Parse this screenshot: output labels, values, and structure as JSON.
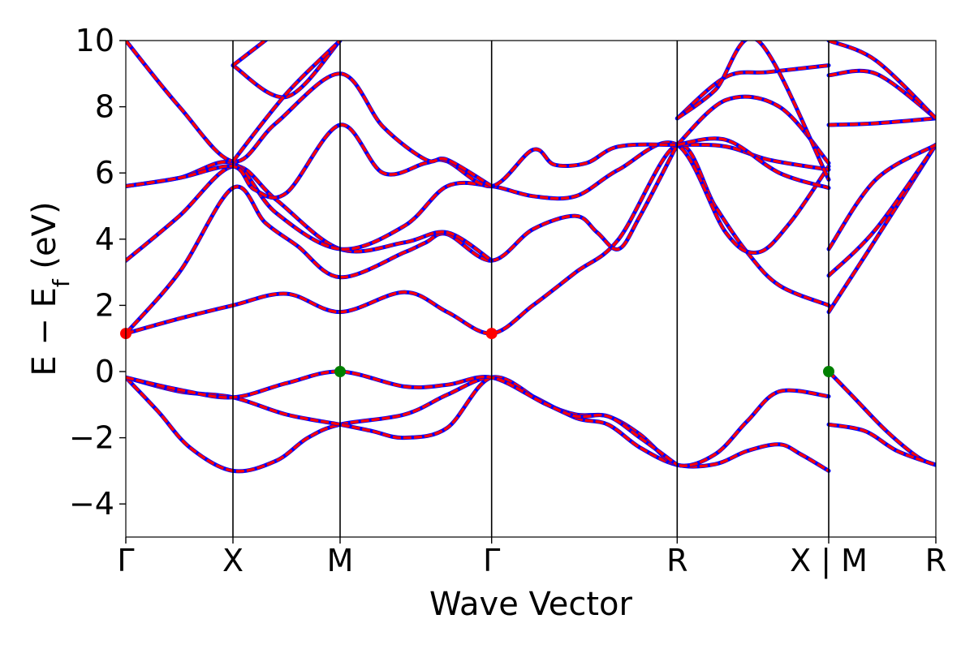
{
  "chart_data": {
    "type": "line",
    "xlabel": "Wave Vector",
    "ylabel": {
      "text_prefix": "E − E",
      "subscript": "f",
      "text_suffix": " (eV)"
    },
    "ylim": [
      -5,
      10
    ],
    "yticks": [
      -4,
      -2,
      0,
      2,
      4,
      6,
      8,
      10
    ],
    "ytick_labels": [
      "−4",
      "−2",
      "0",
      "2",
      "4",
      "6",
      "8",
      "10"
    ],
    "xticks": [
      {
        "x": 0.0,
        "label": "Γ"
      },
      {
        "x": 0.5,
        "label": "X"
      },
      {
        "x": 1.0,
        "label": "M"
      },
      {
        "x": 1.7071,
        "label": "Γ"
      },
      {
        "x": 2.5731,
        "label": "R"
      },
      {
        "x": 3.2802,
        "label": "X | M"
      },
      {
        "x": 3.7802,
        "label": "R"
      }
    ],
    "xlim": [
      0,
      3.7802
    ],
    "grid": false,
    "legend": "none",
    "series_colors": {
      "dft": "#0000ff",
      "wannier": "#ff0000"
    },
    "bands": [
      [
        [
          0,
          -0.18
        ],
        [
          0.15,
          -1.2
        ],
        [
          0.3,
          -2.3
        ],
        [
          0.5,
          -3.0
        ],
        [
          0.7,
          -2.7
        ],
        [
          0.85,
          -2.0
        ],
        [
          1.0,
          -1.6
        ],
        [
          1.3,
          -1.3
        ],
        [
          1.5,
          -0.7
        ],
        [
          1.7071,
          -0.18
        ],
        [
          1.9,
          -0.75
        ],
        [
          2.1,
          -1.4
        ],
        [
          2.25,
          -1.6
        ],
        [
          2.4,
          -2.3
        ],
        [
          2.5731,
          -2.82
        ],
        [
          2.75,
          -2.8
        ],
        [
          2.9,
          -2.4
        ],
        [
          3.05,
          -2.2
        ],
        [
          3.15,
          -2.5
        ],
        [
          3.2802,
          -3.0
        ]
      ],
      [
        [
          0,
          -0.18
        ],
        [
          0.25,
          -0.6
        ],
        [
          0.5,
          -0.78
        ],
        [
          0.75,
          -1.3
        ],
        [
          1.0,
          -1.6
        ],
        [
          1.15,
          -1.8
        ],
        [
          1.3,
          -2.0
        ],
        [
          1.5,
          -1.7
        ],
        [
          1.7071,
          -0.18
        ],
        [
          1.95,
          -0.95
        ],
        [
          2.1,
          -1.3
        ],
        [
          2.25,
          -1.35
        ],
        [
          2.4,
          -1.9
        ],
        [
          2.5731,
          -2.82
        ],
        [
          2.75,
          -2.5
        ],
        [
          2.9,
          -1.5
        ],
        [
          3.05,
          -0.6
        ],
        [
          3.2802,
          -0.75
        ]
      ],
      [
        [
          0,
          -0.18
        ],
        [
          0.25,
          -0.55
        ],
        [
          0.5,
          -0.78
        ],
        [
          0.75,
          -0.35
        ],
        [
          1.0,
          0.0
        ],
        [
          1.3,
          -0.45
        ],
        [
          1.5,
          -0.4
        ],
        [
          1.7071,
          -0.18
        ],
        [
          1.95,
          -0.95
        ],
        [
          2.1,
          -1.35
        ],
        [
          2.25,
          -1.35
        ],
        [
          2.4,
          -2.0
        ],
        [
          2.5731,
          -2.82
        ]
      ],
      [
        [
          3.2802,
          0.0
        ],
        [
          3.4,
          -0.8
        ],
        [
          3.55,
          -1.8
        ],
        [
          3.7,
          -2.6
        ],
        [
          3.7802,
          -2.82
        ]
      ],
      [
        [
          3.2802,
          -1.6
        ],
        [
          3.45,
          -1.8
        ],
        [
          3.6,
          -2.4
        ],
        [
          3.7802,
          -2.82
        ]
      ],
      [
        [
          0,
          1.15
        ],
        [
          0.25,
          1.6
        ],
        [
          0.5,
          2.0
        ],
        [
          0.75,
          2.35
        ],
        [
          1.0,
          1.8
        ],
        [
          1.3,
          2.4
        ],
        [
          1.5,
          1.8
        ],
        [
          1.7071,
          1.15
        ],
        [
          1.9,
          2.0
        ],
        [
          2.1,
          3.0
        ],
        [
          2.3,
          4.0
        ],
        [
          2.5731,
          6.85
        ],
        [
          2.75,
          5.0
        ],
        [
          2.9,
          3.6
        ],
        [
          3.05,
          2.6
        ],
        [
          3.2802,
          2.0
        ]
      ],
      [
        [
          0,
          1.15
        ],
        [
          0.25,
          3.0
        ],
        [
          0.5,
          5.55
        ],
        [
          0.65,
          4.5
        ],
        [
          0.8,
          3.8
        ],
        [
          1.0,
          2.85
        ],
        [
          1.3,
          3.6
        ],
        [
          1.4,
          3.9
        ],
        [
          1.5,
          4.15
        ],
        [
          1.7071,
          3.35
        ],
        [
          1.9,
          4.3
        ],
        [
          2.1,
          4.7
        ],
        [
          2.2,
          4.2
        ],
        [
          2.3,
          3.7
        ],
        [
          2.4,
          4.7
        ],
        [
          2.5731,
          6.85
        ]
      ],
      [
        [
          0,
          3.35
        ],
        [
          0.25,
          4.7
        ],
        [
          0.5,
          6.2
        ],
        [
          0.7,
          5.2
        ],
        [
          1.0,
          3.7
        ],
        [
          1.3,
          3.9
        ],
        [
          1.5,
          4.2
        ],
        [
          1.7071,
          3.35
        ]
      ],
      [
        [
          0,
          5.6
        ],
        [
          0.25,
          5.85
        ],
        [
          0.5,
          6.3
        ],
        [
          0.7,
          4.8
        ],
        [
          1.0,
          3.7
        ],
        [
          1.3,
          4.4
        ],
        [
          1.5,
          5.6
        ],
        [
          1.7071,
          5.6
        ],
        [
          1.9,
          5.3
        ],
        [
          2.1,
          5.3
        ],
        [
          2.3,
          6.1
        ],
        [
          2.5731,
          6.85
        ],
        [
          2.8,
          4.2
        ],
        [
          2.95,
          3.6
        ],
        [
          3.1,
          4.5
        ],
        [
          3.2802,
          6.2
        ]
      ],
      [
        [
          0,
          5.6
        ],
        [
          0.25,
          5.85
        ],
        [
          0.5,
          6.2
        ],
        [
          0.6,
          5.5
        ],
        [
          0.75,
          5.4
        ],
        [
          1.0,
          7.45
        ],
        [
          1.2,
          6.0
        ],
        [
          1.4,
          6.3
        ],
        [
          1.5,
          6.35
        ],
        [
          1.7071,
          5.6
        ],
        [
          1.9,
          6.7
        ],
        [
          2.0,
          6.25
        ],
        [
          2.15,
          6.3
        ],
        [
          2.3,
          6.8
        ],
        [
          2.5731,
          6.85
        ],
        [
          2.8,
          6.8
        ],
        [
          3.0,
          6.4
        ],
        [
          3.2802,
          6.1
        ]
      ],
      [
        [
          0,
          10.0
        ],
        [
          0.25,
          8.0
        ],
        [
          0.5,
          6.35
        ],
        [
          0.7,
          7.5
        ],
        [
          1.0,
          9.0
        ],
        [
          1.2,
          7.4
        ],
        [
          1.4,
          6.4
        ],
        [
          1.5,
          6.4
        ],
        [
          1.7071,
          5.6
        ]
      ],
      [
        [
          0.5,
          9.25
        ],
        [
          0.75,
          8.3
        ],
        [
          1.0,
          10.0
        ]
      ],
      [
        [
          0.5,
          9.25
        ],
        [
          0.75,
          10.5
        ]
      ],
      [
        [
          0.5,
          6.35
        ],
        [
          0.75,
          8.4
        ],
        [
          1.0,
          10.0
        ]
      ],
      [
        [
          2.5731,
          7.65
        ],
        [
          2.8,
          8.9
        ],
        [
          3.0,
          9.05
        ],
        [
          3.2802,
          9.25
        ]
      ],
      [
        [
          2.5731,
          6.85
        ],
        [
          2.8,
          8.2
        ],
        [
          3.05,
          8.0
        ],
        [
          3.2802,
          6.3
        ]
      ],
      [
        [
          2.5731,
          6.85
        ],
        [
          2.8,
          7.0
        ],
        [
          3.05,
          6.0
        ],
        [
          3.2802,
          5.55
        ]
      ],
      [
        [
          2.5731,
          7.65
        ],
        [
          2.75,
          8.5
        ],
        [
          2.95,
          10.0
        ],
        [
          3.2802,
          5.8
        ]
      ],
      [
        [
          3.2802,
          1.8
        ],
        [
          3.5,
          4.0
        ],
        [
          3.7802,
          6.85
        ]
      ],
      [
        [
          3.2802,
          2.9
        ],
        [
          3.5,
          4.3
        ],
        [
          3.7802,
          6.85
        ]
      ],
      [
        [
          3.2802,
          3.7
        ],
        [
          3.5,
          5.8
        ],
        [
          3.7802,
          6.85
        ]
      ],
      [
        [
          3.2802,
          7.45
        ],
        [
          3.5,
          7.5
        ],
        [
          3.7802,
          7.65
        ]
      ],
      [
        [
          3.2802,
          8.95
        ],
        [
          3.5,
          9.0
        ],
        [
          3.7802,
          7.65
        ]
      ],
      [
        [
          3.2802,
          10.0
        ],
        [
          3.5,
          9.4
        ],
        [
          3.7802,
          7.65
        ]
      ]
    ],
    "markers": [
      {
        "x": 0.0,
        "y": 1.15,
        "color": "#ff0000"
      },
      {
        "x": 1.7071,
        "y": 1.15,
        "color": "#ff0000"
      },
      {
        "x": 1.0,
        "y": 0.0,
        "color": "#008000"
      },
      {
        "x": 3.2802,
        "y": 0.0,
        "color": "#008000"
      }
    ]
  }
}
